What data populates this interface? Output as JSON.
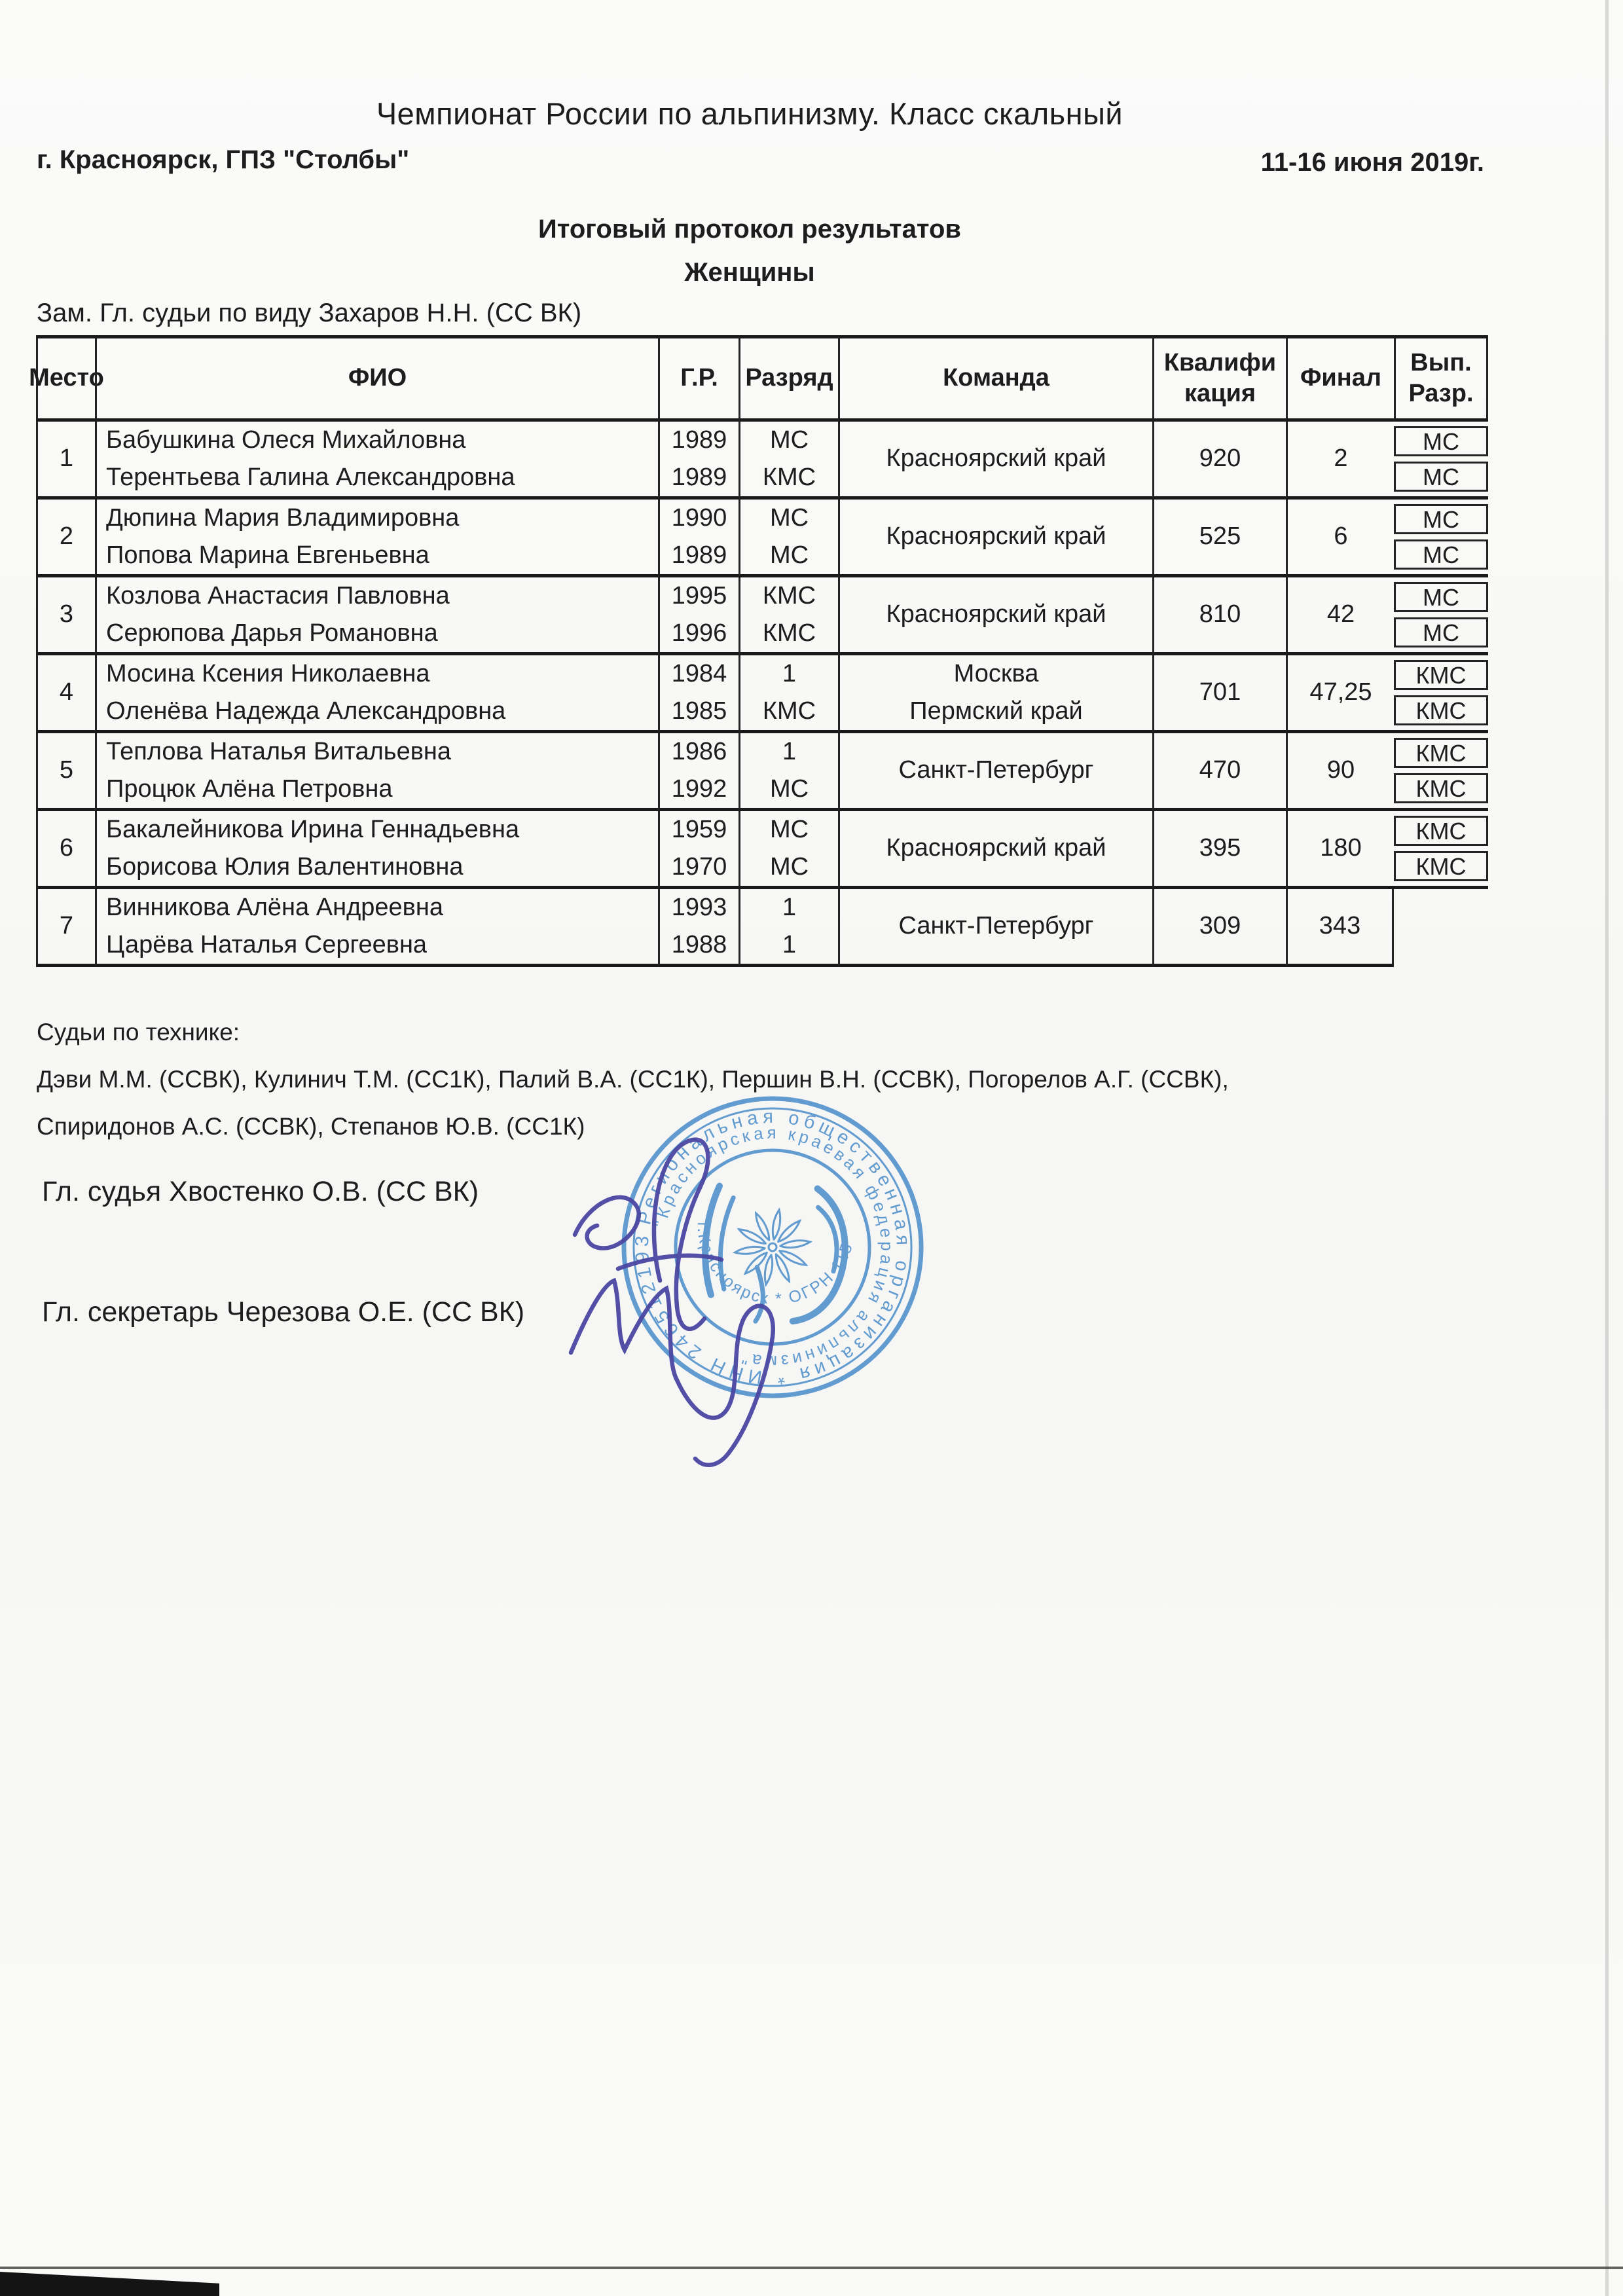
{
  "page": {
    "title": "Чемпионат России по альпинизму. Класс скальный",
    "location": "г. Красноярск, ГПЗ \"Столбы\"",
    "dates": "11-16 июня 2019г.",
    "subtitle": "Итоговый протокол результатов",
    "category": "Женщины",
    "deputy_judge_line": "Зам. Гл. судьи по виду Захаров Н.Н. (СС ВК)"
  },
  "table": {
    "headers": {
      "place": "Место",
      "name": "ФИО",
      "birth": "Г.Р.",
      "grade": "Разряд",
      "team": "Команда",
      "qual_line1": "Квалифи",
      "qual_line2": "кация",
      "final": "Финал",
      "vyp_line1": "Вып.",
      "vyp_line2": "Разр."
    },
    "rows": [
      {
        "place": "1",
        "members": [
          {
            "name": "Бабушкина Олеся Михайловна",
            "birth": "1989",
            "grade": "МС",
            "new_grade": "МС"
          },
          {
            "name": "Терентьева Галина Александровна",
            "birth": "1989",
            "grade": "КМС",
            "new_grade": "МС"
          }
        ],
        "team": [
          "Красноярский край"
        ],
        "qualification": "920",
        "final": "2"
      },
      {
        "place": "2",
        "members": [
          {
            "name": "Дюпина Мария Владимировна",
            "birth": "1990",
            "grade": "МС",
            "new_grade": "МС"
          },
          {
            "name": "Попова Марина Евгеньевна",
            "birth": "1989",
            "grade": "МС",
            "new_grade": "МС"
          }
        ],
        "team": [
          "Красноярский край"
        ],
        "qualification": "525",
        "final": "6"
      },
      {
        "place": "3",
        "members": [
          {
            "name": "Козлова Анастасия Павловна",
            "birth": "1995",
            "grade": "КМС",
            "new_grade": "МС"
          },
          {
            "name": "Серюпова Дарья Романовна",
            "birth": "1996",
            "grade": "КМС",
            "new_grade": "МС"
          }
        ],
        "team": [
          "Красноярский край"
        ],
        "qualification": "810",
        "final": "42"
      },
      {
        "place": "4",
        "members": [
          {
            "name": "Мосина Ксения Николаевна",
            "birth": "1984",
            "grade": "1",
            "new_grade": "КМС"
          },
          {
            "name": "Оленёва Надежда Александровна",
            "birth": "1985",
            "grade": "КМС",
            "new_grade": "КМС"
          }
        ],
        "team": [
          "Москва",
          "Пермский край"
        ],
        "qualification": "701",
        "final": "47,25"
      },
      {
        "place": "5",
        "members": [
          {
            "name": "Теплова Наталья Витальевна",
            "birth": "1986",
            "grade": "1",
            "new_grade": "КМС"
          },
          {
            "name": "Процюк Алёна Петровна",
            "birth": "1992",
            "grade": "МС",
            "new_grade": "КМС"
          }
        ],
        "team": [
          "Санкт-Петербург"
        ],
        "qualification": "470",
        "final": "90"
      },
      {
        "place": "6",
        "members": [
          {
            "name": "Бакалейникова Ирина Геннадьевна",
            "birth": "1959",
            "grade": "МС",
            "new_grade": "КМС"
          },
          {
            "name": "Борисова Юлия Валентиновна",
            "birth": "1970",
            "grade": "МС",
            "new_grade": "КМС"
          }
        ],
        "team": [
          "Красноярский край"
        ],
        "qualification": "395",
        "final": "180"
      },
      {
        "place": "7",
        "members": [
          {
            "name": "Винникова Алёна Андреевна",
            "birth": "1993",
            "grade": "1",
            "new_grade": ""
          },
          {
            "name": "Царёва Наталья Сергеевна",
            "birth": "1988",
            "grade": "1",
            "new_grade": ""
          }
        ],
        "team": [
          "Санкт-Петербург"
        ],
        "qualification": "309",
        "final": "343"
      }
    ]
  },
  "footer": {
    "technique_judges_label": "Судьи по технике:",
    "technique_judges_line1": "Дэви М.М. (ССВК), Кулинич Т.М. (СС1К), Палий В.А. (СС1К), Першин В.Н. (ССВК), Погорелов А.Г. (ССВК),",
    "technique_judges_line2": "Спиридонов А.С. (ССВК), Степанов Ю.В. (СС1К)",
    "chief_judge": "Гл. судья Хвостенко О.В. (СС ВК)",
    "chief_secretary": "Гл. секретарь Черезова О.Е. (СС ВК)"
  },
  "stamp": {
    "outer_arc": "Региональная общественная организация * ИНН 2465121934",
    "mid_arc": "\"Красноярская краевая федерация альпинизма\"",
    "inner_arc": "г.Красноярск * ОГРН 1152468030571"
  },
  "colors": {
    "ink": "#1d1d1d",
    "stamp_blue": "#4e8fcb",
    "signature_ink": "#4b47a2",
    "paper": "#fafaf8"
  }
}
